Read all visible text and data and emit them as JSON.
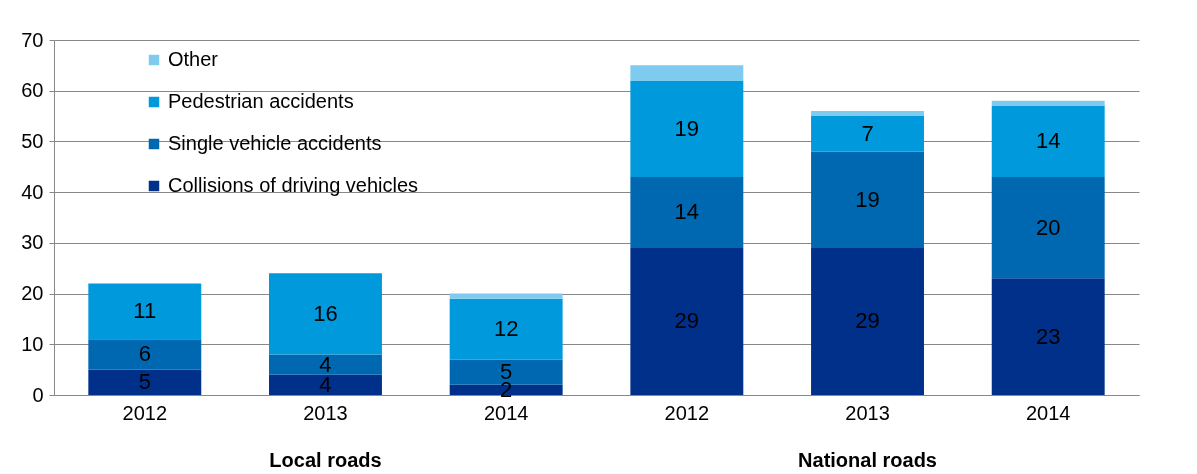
{
  "chart_data": {
    "type": "bar",
    "stacked": true,
    "categories": [
      "2012",
      "2013",
      "2014",
      "2012",
      "2013",
      "2014"
    ],
    "annotations": [
      "Local roads",
      "National roads"
    ],
    "series": [
      {
        "name": "Collisions of driving vehicles",
        "color": "#00308a",
        "values": [
          5,
          4,
          2,
          29,
          29,
          23
        ],
        "value_labels": [
          "5",
          "4",
          "2",
          "29",
          "29",
          "23"
        ]
      },
      {
        "name": "Single vehicle accidents",
        "color": "#0068b0",
        "values": [
          6,
          4,
          5,
          14,
          19,
          20
        ],
        "value_labels": [
          "6",
          "4",
          "5",
          "14",
          "19",
          "20"
        ]
      },
      {
        "name": "Pedestrian accidents",
        "color": "#0099dc",
        "values": [
          11,
          16,
          12,
          19,
          7,
          14
        ],
        "value_labels": [
          "11",
          "16",
          "12",
          "19",
          "7",
          "14"
        ]
      },
      {
        "name": "Other",
        "color": "#7fcbf0",
        "values": [
          0,
          0,
          1,
          3,
          1,
          1
        ]
      }
    ],
    "ylim": [
      0,
      70
    ],
    "yticks": [
      0,
      10,
      20,
      30,
      40,
      50,
      60,
      70
    ],
    "grid": "y",
    "legend": "top left"
  }
}
